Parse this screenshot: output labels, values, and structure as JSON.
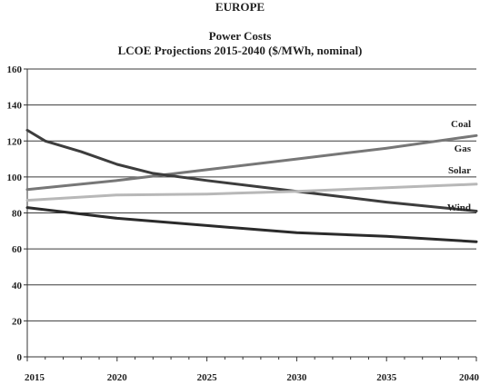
{
  "heading": "EUROPE",
  "chart_data": {
    "type": "line",
    "title": "Power Costs",
    "subtitle": "LCOE Projections 2015-2040 ($/MWh, nominal)",
    "xlabel": "",
    "ylabel": "",
    "xlim": [
      2015,
      2040
    ],
    "ylim": [
      0,
      160
    ],
    "xticks": [
      2015,
      2020,
      2025,
      2030,
      2035,
      2040
    ],
    "yticks": [
      0,
      20,
      40,
      60,
      80,
      100,
      120,
      140,
      160
    ],
    "grid": true,
    "legend": "inline-right",
    "series": [
      {
        "name": "Coal",
        "color": "#777777",
        "x": [
          2015,
          2017,
          2020,
          2025,
          2030,
          2035,
          2040
        ],
        "values": [
          93,
          95,
          98,
          104,
          110,
          116,
          123
        ]
      },
      {
        "name": "Gas",
        "color": "#3d3d3d",
        "x": [
          2015,
          2016,
          2018,
          2020,
          2022,
          2025,
          2030,
          2035,
          2040
        ],
        "values": [
          126,
          120,
          114,
          107,
          102,
          98,
          92,
          86,
          81
        ]
      },
      {
        "name": "Solar",
        "color": "#b8b8b8",
        "x": [
          2015,
          2020,
          2025,
          2030,
          2035,
          2040
        ],
        "values": [
          87,
          90,
          90.5,
          92,
          94,
          96
        ]
      },
      {
        "name": "Wind",
        "color": "#2b2b2b",
        "x": [
          2015,
          2020,
          2025,
          2030,
          2035,
          2040
        ],
        "values": [
          83,
          77,
          73,
          69,
          67,
          64
        ]
      }
    ]
  }
}
